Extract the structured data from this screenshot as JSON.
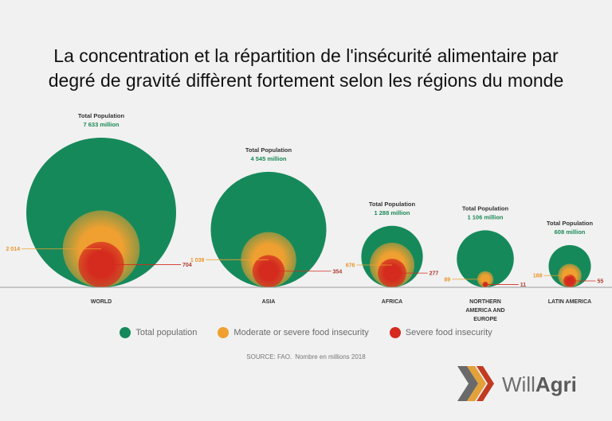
{
  "title_lines": [
    "La concentration et la répartition de l'insécurité alimentaire par",
    "degré de gravité diffèrent fortement selon les régions du monde"
  ],
  "chart_data": {
    "type": "bubble",
    "regions": [
      {
        "name": "WORLD",
        "total_label": "Total Population",
        "total_value": "7 633 million",
        "total": 7633,
        "moderate_or_severe": 2014,
        "severe": 704
      },
      {
        "name": "ASIA",
        "total_label": "Total Population",
        "total_value": "4 545 million",
        "total": 4545,
        "moderate_or_severe": 1039,
        "severe": 354
      },
      {
        "name": "AFRICA",
        "total_label": "Total Population",
        "total_value": "1 288 million",
        "total": 1288,
        "moderate_or_severe": 676,
        "severe": 277
      },
      {
        "name": "NORTHERN AMERICA AND EUROPE",
        "name_lines": [
          "NORTHERN",
          "AMERICA AND",
          "EUROPE"
        ],
        "total_label": "Total Population",
        "total_value": "1 106 million",
        "total": 1106,
        "moderate_or_severe": 89,
        "severe": 11
      },
      {
        "name": "LATIN AMERICA",
        "total_label": "Total Population",
        "total_value": "608 million",
        "total": 608,
        "moderate_or_severe": 188,
        "severe": 55
      }
    ],
    "value_labels": [
      {
        "moderate": "2 014",
        "severe": "704"
      },
      {
        "moderate": "1 039",
        "severe": "354"
      },
      {
        "moderate": "676",
        "severe": "277"
      },
      {
        "moderate": "89",
        "severe": "11"
      },
      {
        "moderate": "188",
        "severe": "55"
      }
    ],
    "legend_position": "bottom"
  },
  "legend": [
    {
      "label": "Total population",
      "color": "#16895b"
    },
    {
      "label": "Moderate or severe food insecurity",
      "color": "#f0a030"
    },
    {
      "label": "Severe food insecurity",
      "color": "#d42b1e"
    }
  ],
  "colors": {
    "green": "#16895b",
    "orange": "#f0a030",
    "red": "#d42b1e",
    "green_text": "#1a8a56",
    "orange_text": "#e8952a",
    "red_text": "#b03a2e"
  },
  "source": {
    "text": "SOURCE: FAO.",
    "note": "Nombre en millions 2018"
  },
  "logo": {
    "text_regular": "Will",
    "text_bold": "Agri"
  }
}
